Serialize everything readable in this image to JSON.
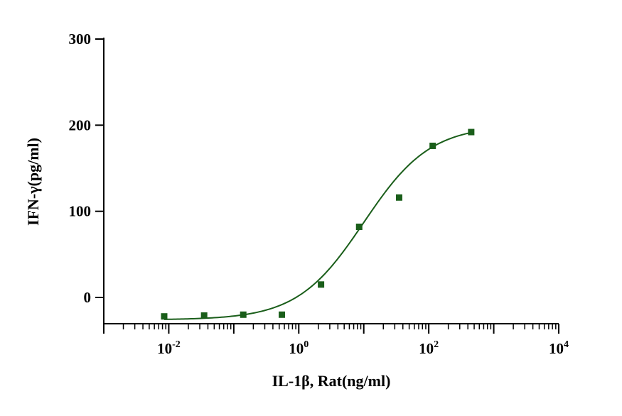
{
  "chart_data": {
    "type": "scatter",
    "xlabel": "IL-1β, Rat(ng/ml)",
    "ylabel": "IFN-γ(pg/ml)",
    "x_scale": "log10",
    "xlim": [
      0.001,
      10000
    ],
    "ylim": [
      -30,
      300
    ],
    "y_ticks": [
      0,
      100,
      200,
      300
    ],
    "x_tick_labels": [
      {
        "value": 0.01,
        "base": "10",
        "exp": "-2"
      },
      {
        "value": 1,
        "base": "10",
        "exp": "0"
      },
      {
        "value": 100,
        "base": "10",
        "exp": "2"
      },
      {
        "value": 10000,
        "base": "10",
        "exp": "4"
      }
    ],
    "grid": false,
    "color": "#1a5e1a",
    "series": [
      {
        "marker": "square",
        "points": [
          {
            "x": 0.0085,
            "y": -22
          },
          {
            "x": 0.035,
            "y": -21
          },
          {
            "x": 0.14,
            "y": -20
          },
          {
            "x": 0.55,
            "y": -20
          },
          {
            "x": 2.2,
            "y": 15
          },
          {
            "x": 8.5,
            "y": 82
          },
          {
            "x": 35,
            "y": 116
          },
          {
            "x": 115,
            "y": 176
          },
          {
            "x": 450,
            "y": 192
          }
        ]
      }
    ],
    "fit_curve": {
      "model": "4PL",
      "bottom": -26,
      "top": 200,
      "ec50": 10,
      "hill": 0.85,
      "x_range": [
        0.0085,
        450
      ]
    }
  }
}
